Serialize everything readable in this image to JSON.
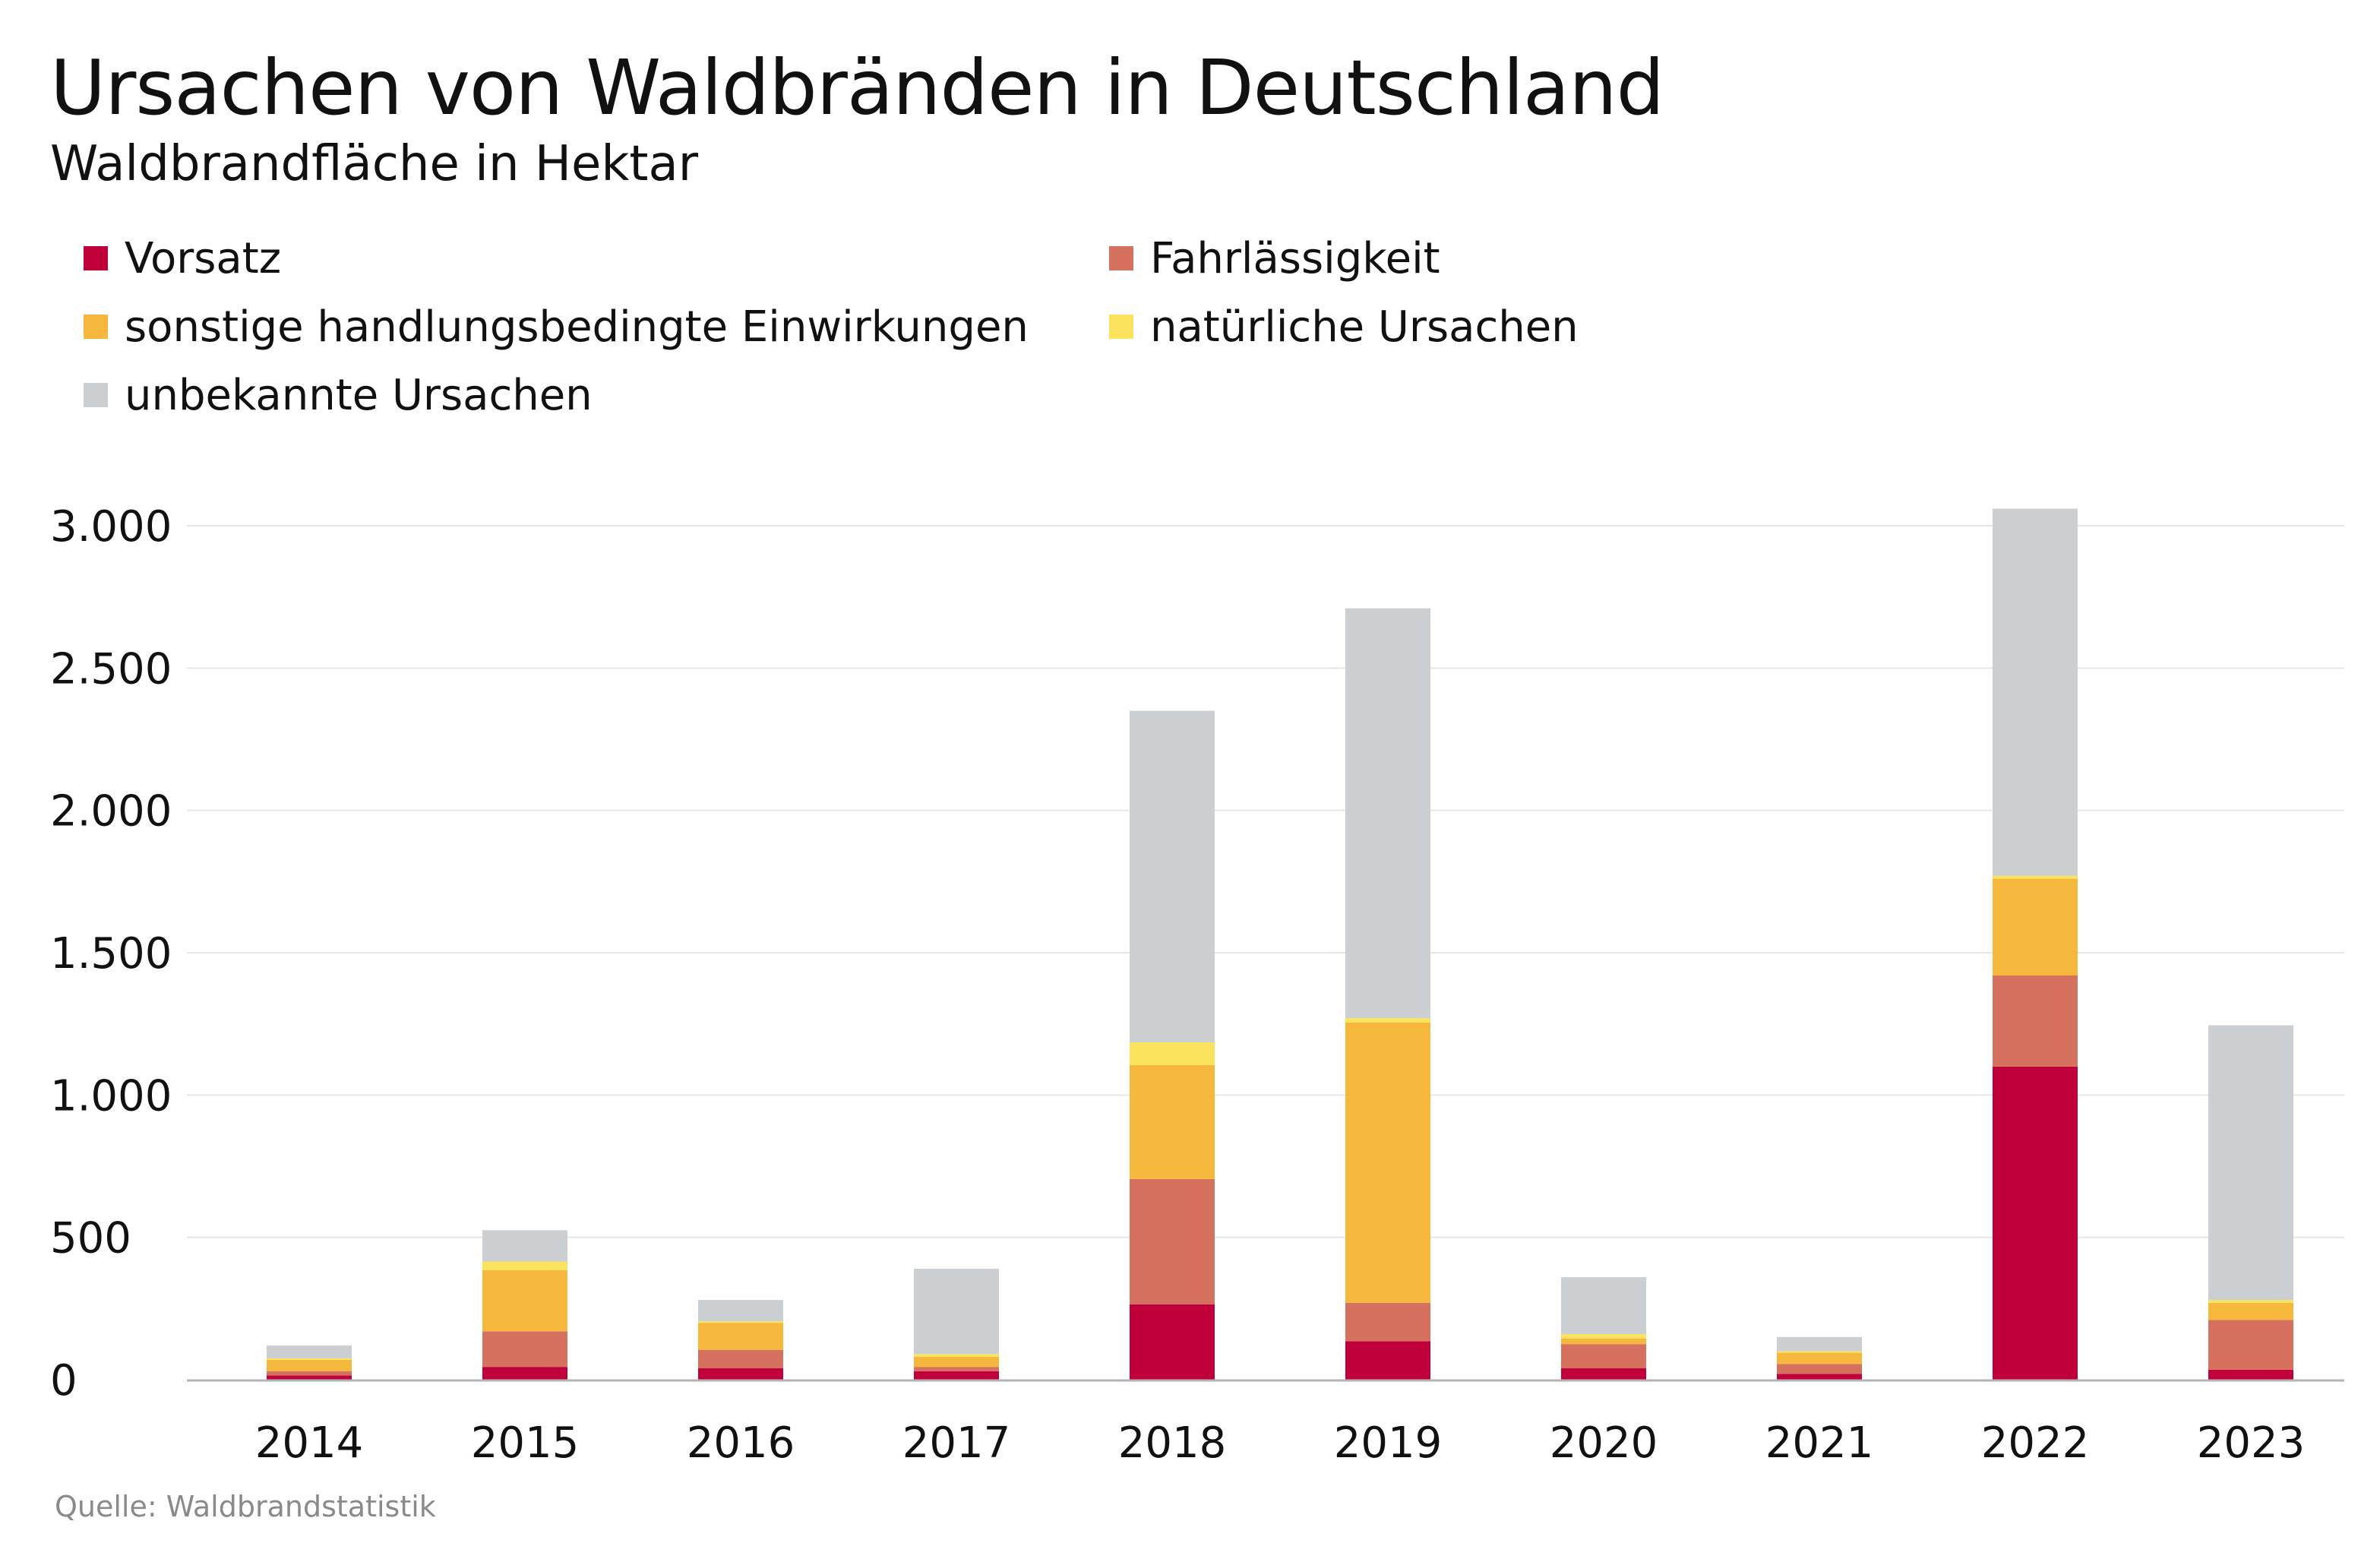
{
  "title": "Ursachen von Waldbränden in Deutschland",
  "subtitle": "Waldbrandfläche in Hektar",
  "source": "Quelle: Waldbrandstatistik",
  "colors": {
    "gridline": "#e6e6e6",
    "axis": "#b3b3b3",
    "text": "#111111"
  },
  "chart_data": {
    "type": "bar",
    "stacked": true,
    "categories": [
      "2014",
      "2015",
      "2016",
      "2017",
      "2018",
      "2019",
      "2020",
      "2021",
      "2022",
      "2023"
    ],
    "series": [
      {
        "name": "Vorsatz",
        "color": "#c0003a",
        "values": [
          15,
          45,
          40,
          30,
          265,
          135,
          40,
          20,
          1100,
          35
        ]
      },
      {
        "name": "Fahrlässigkeit",
        "color": "#d7715f",
        "values": [
          15,
          125,
          65,
          15,
          440,
          135,
          85,
          35,
          320,
          175
        ]
      },
      {
        "name": "sonstige handlungsbedingte Einwirkungen",
        "color": "#f6b83c",
        "values": [
          40,
          215,
          95,
          35,
          400,
          985,
          20,
          40,
          340,
          60
        ]
      },
      {
        "name": "natürliche Ursachen",
        "color": "#fbe35e",
        "values": [
          5,
          30,
          5,
          10,
          80,
          15,
          15,
          5,
          10,
          10
        ]
      },
      {
        "name": "unbekannte Ursachen",
        "color": "#cbcfd2",
        "values": [
          45,
          110,
          75,
          300,
          1165,
          1440,
          200,
          50,
          1290,
          965
        ]
      }
    ],
    "y_ticks": [
      0,
      500,
      1000,
      1500,
      2000,
      2500,
      3000
    ],
    "y_tick_labels": [
      "0",
      "500",
      "1.000",
      "1.500",
      "2.000",
      "2.500",
      "3.000"
    ],
    "ylim": [
      0,
      3100
    ],
    "grid": true,
    "legend_position": "top-left",
    "xlabel": "",
    "ylabel": ""
  }
}
